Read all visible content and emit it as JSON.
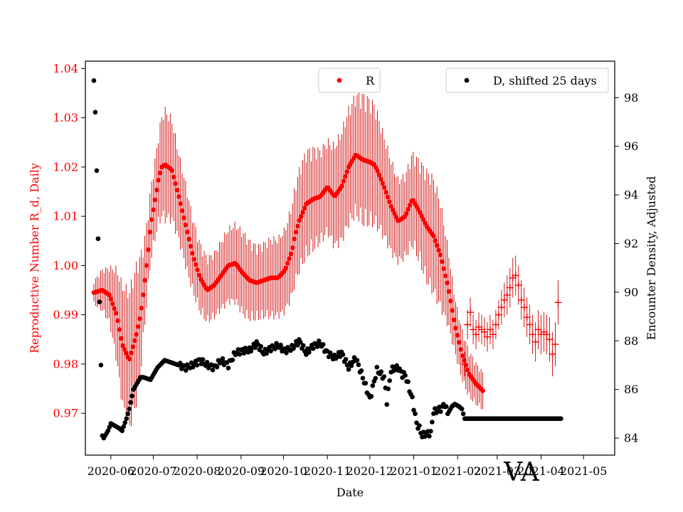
{
  "chart_data": {
    "type": "scatter",
    "title": "VA",
    "xlabel": "Date",
    "ylabel_left": "Reproductive Number R_d, Daily",
    "ylabel_right": "Encounter Density, Adjusted",
    "x_tick_labels": [
      "2020-06",
      "2020-07",
      "2020-08",
      "2020-09",
      "2020-10",
      "2020-11",
      "2020-12",
      "2021-01",
      "2021-02",
      "2021-03",
      "2021-04",
      "2021-05"
    ],
    "x_range_days": [
      -6,
      368
    ],
    "x_origin": "2020-05-20",
    "y_left_range": [
      0.9615,
      1.0415
    ],
    "y_left_ticks": [
      "0.97",
      "0.98",
      "0.99",
      "1.00",
      "1.01",
      "1.02",
      "1.03",
      "1.04"
    ],
    "y_right_range": [
      83.3,
      99.5
    ],
    "y_right_ticks": [
      "84",
      "86",
      "88",
      "90",
      "92",
      "94",
      "96",
      "98"
    ],
    "legend": {
      "r_label": "R",
      "d_label": "D, shifted 25 days",
      "r_position": "top-center",
      "d_position": "top-right"
    },
    "colors": {
      "r_series": "#ff0000",
      "d_series": "#000000",
      "errorbar": "#cc0000"
    },
    "series_r": {
      "name": "R",
      "anchor_days": [
        0,
        6,
        11,
        16,
        20,
        25,
        30,
        33,
        35,
        38,
        40,
        43,
        46,
        48,
        50,
        55,
        60,
        65,
        70,
        75,
        80,
        85,
        90,
        95,
        100,
        105,
        110,
        115,
        120,
        125,
        130,
        135,
        140,
        142,
        145,
        150,
        155,
        160,
        165,
        170,
        175,
        180,
        185,
        190,
        195,
        198,
        200,
        205,
        210,
        215,
        220,
        225,
        230,
        235,
        240,
        245,
        250,
        255,
        260,
        265,
        270,
        275,
        280,
        285,
        290,
        295,
        300,
        305,
        310,
        315,
        320,
        325,
        330
      ],
      "anchor_values": [
        0.9945,
        0.995,
        0.994,
        0.99,
        0.984,
        0.9808,
        0.986,
        0.99,
        0.9945,
        1.002,
        1.008,
        1.013,
        1.018,
        1.02,
        1.0205,
        1.0195,
        1.014,
        1.008,
        1.002,
        0.9975,
        0.995,
        0.996,
        0.998,
        1.0,
        1.0005,
        0.9985,
        0.997,
        0.9965,
        0.997,
        0.9975,
        0.9975,
        0.999,
        1.003,
        1.006,
        1.009,
        1.0125,
        1.0135,
        1.014,
        1.016,
        1.014,
        1.016,
        1.02,
        1.0225,
        1.0215,
        1.021,
        1.0205,
        1.0195,
        1.016,
        1.012,
        1.009,
        1.01,
        1.0135,
        1.011,
        1.008,
        1.006,
        1.002,
        0.996,
        0.988,
        0.982,
        0.978,
        0.976,
        0.9745,
        null,
        null,
        null,
        null,
        null,
        null,
        null,
        null,
        null,
        null,
        null
      ],
      "step_days": 1.2,
      "error_half_width": [
        0.0025,
        0.0045,
        0.006,
        0.01,
        0.013,
        0.015,
        0.015,
        0.013,
        0.01,
        0.0085,
        0.008,
        0.0085,
        0.01,
        0.011,
        0.012,
        0.011,
        0.0095,
        0.009,
        0.008,
        0.0075,
        0.007,
        0.007,
        0.0075,
        0.008,
        0.0085,
        0.009,
        0.0085,
        0.008,
        0.008,
        0.0085,
        0.0085,
        0.009,
        0.01,
        0.0105,
        0.011,
        0.0115,
        0.011,
        0.01,
        0.01,
        0.011,
        0.012,
        0.0125,
        0.013,
        0.014,
        0.0135,
        0.013,
        0.0125,
        0.011,
        0.01,
        0.009,
        0.009,
        0.01,
        0.011,
        0.012,
        0.0125,
        0.0115,
        0.0085,
        0.006,
        0.0055,
        0.005,
        0.0045,
        0.004,
        null,
        null,
        null,
        null,
        null,
        null,
        null,
        null,
        null,
        null,
        null
      ]
    },
    "series_r_late": {
      "marker": "plus",
      "days": [
        262,
        264,
        266,
        268,
        270,
        272,
        274,
        276,
        278,
        280,
        282,
        284,
        286,
        288,
        290,
        292,
        294,
        296,
        298,
        300,
        302,
        304,
        306,
        308,
        310,
        312,
        314,
        316,
        318,
        320,
        322,
        324,
        326,
        328
      ],
      "values": [
        0.98,
        0.988,
        0.9905,
        0.987,
        0.986,
        0.9875,
        0.987,
        0.9865,
        0.9855,
        0.987,
        0.986,
        0.988,
        0.99,
        0.9915,
        0.993,
        0.994,
        0.9955,
        0.9975,
        0.998,
        0.996,
        0.993,
        0.9915,
        0.9895,
        0.988,
        0.986,
        0.9845,
        0.987,
        0.986,
        0.9865,
        0.986,
        0.985,
        0.982,
        0.984,
        0.9925
      ],
      "error_half_width": [
        0.0025,
        0.003,
        0.003,
        0.003,
        0.003,
        0.003,
        0.003,
        0.003,
        0.003,
        0.003,
        0.003,
        0.003,
        0.003,
        0.0035,
        0.0035,
        0.004,
        0.004,
        0.004,
        0.004,
        0.004,
        0.004,
        0.004,
        0.004,
        0.004,
        0.004,
        0.004,
        0.004,
        0.004,
        0.004,
        0.004,
        0.0045,
        0.0045,
        0.0045,
        0.0045
      ]
    },
    "series_d": {
      "name": "D, shifted 25 days",
      "anchor_days": [
        0,
        1,
        2,
        3,
        4,
        5,
        6,
        7,
        8,
        10,
        12,
        15,
        18,
        20,
        23,
        25,
        28,
        30,
        33,
        35,
        40,
        45,
        50,
        55,
        60,
        65,
        70,
        75,
        80,
        85,
        90,
        95,
        100,
        105,
        110,
        115,
        120,
        125,
        130,
        135,
        140,
        145,
        150,
        155,
        160,
        165,
        170,
        175,
        180,
        185,
        190,
        195,
        200,
        205,
        207,
        210,
        215,
        218,
        220,
        225,
        228,
        230,
        232,
        235,
        238,
        240,
        242,
        245,
        248,
        250,
        253,
        255,
        258,
        260,
        262,
        264,
        266,
        268,
        270,
        275,
        280,
        285,
        290,
        295,
        300,
        305,
        310,
        315,
        320,
        325,
        330
      ],
      "anchor_values": [
        98.7,
        97.4,
        95.0,
        92.2,
        89.6,
        87.0,
        84.1,
        84.0,
        84.1,
        84.3,
        84.6,
        84.5,
        84.4,
        84.3,
        84.8,
        85.2,
        86.0,
        86.2,
        86.5,
        86.5,
        86.4,
        86.9,
        87.2,
        87.1,
        87.0,
        86.9,
        87.0,
        87.2,
        87.0,
        86.9,
        87.2,
        87.0,
        87.5,
        87.6,
        87.6,
        87.9,
        87.5,
        87.7,
        87.8,
        87.6,
        87.7,
        88.0,
        87.5,
        87.8,
        87.9,
        87.5,
        87.3,
        87.5,
        86.9,
        87.3,
        86.5,
        85.6,
        86.8,
        86.5,
        85.5,
        86.8,
        86.9,
        86.6,
        86.6,
        85.6,
        84.6,
        84.4,
        84.1,
        84.2,
        84.2,
        85.1,
        85.1,
        85.2,
        85.4,
        85.0,
        85.3,
        85.4,
        85.3,
        85.2,
        84.8,
        84.8,
        84.8,
        84.8,
        84.8,
        84.8,
        84.8,
        84.8,
        84.8,
        84.8,
        84.8,
        84.8,
        84.8,
        84.8,
        84.8,
        84.8,
        84.8
      ],
      "step_days": 1.0
    }
  }
}
